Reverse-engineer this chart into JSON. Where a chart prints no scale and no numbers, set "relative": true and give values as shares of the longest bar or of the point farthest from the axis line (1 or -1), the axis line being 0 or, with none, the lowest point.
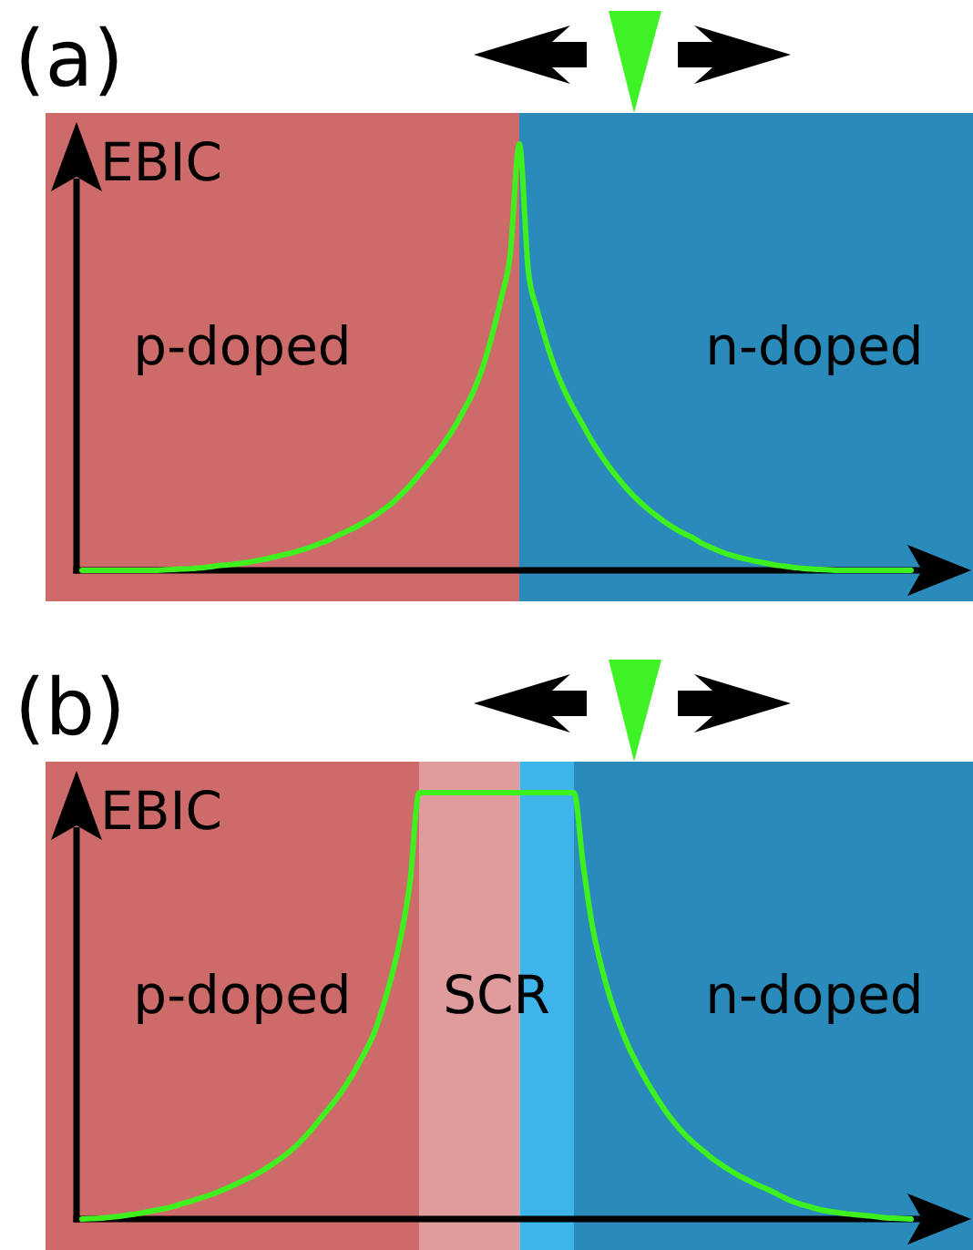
{
  "chart_data": [
    {
      "type": "line",
      "title": "(a)",
      "ylabel": "EBIC",
      "relative": true,
      "annotations": [
        "p-doped",
        "n-doped"
      ],
      "categories": [
        null,
        null,
        null,
        null,
        null,
        null,
        null,
        null,
        null,
        null,
        null,
        null,
        null,
        null,
        null,
        null,
        null,
        null,
        null,
        null,
        null,
        null,
        null,
        null,
        null,
        null,
        null,
        null,
        null,
        null,
        null,
        null,
        null,
        null,
        null,
        null,
        null,
        null,
        null,
        null,
        null,
        null,
        null,
        null,
        null,
        null,
        null,
        null,
        null,
        null,
        null,
        null,
        null,
        null,
        null,
        null,
        null,
        null,
        null,
        null,
        null,
        null,
        null,
        null,
        null,
        null,
        null,
        null,
        null,
        null,
        null,
        null,
        null,
        null,
        null,
        null,
        null,
        null,
        null,
        null,
        null,
        null,
        null,
        null,
        null,
        null,
        null,
        null,
        null,
        null,
        null,
        null
      ],
      "series": [
        {
          "color": "#3ff01f",
          "values": [
            0,
            0,
            0,
            0,
            0,
            0,
            0,
            0,
            0,
            0.001,
            0.002,
            0.003,
            0.004,
            0.006,
            0.008,
            0.011,
            0.013,
            0.015,
            0.018,
            0.022,
            0.026,
            0.031,
            0.036,
            0.041,
            0.047,
            0.054,
            0.062,
            0.07,
            0.081,
            0.091,
            0.101,
            0.113,
            0.126,
            0.141,
            0.157,
            0.177,
            0.199,
            0.224,
            0.25,
            0.277,
            0.307,
            0.34,
            0.379,
            0.421,
            0.477,
            0.55,
            0.637,
            0.74,
            1,
            0.7,
            0.608,
            0.533,
            0.47,
            0.42,
            0.378,
            0.34,
            0.302,
            0.269,
            0.239,
            0.212,
            0.187,
            0.165,
            0.146,
            0.129,
            0.113,
            0.099,
            0.087,
            0.077,
            0.064,
            0.054,
            0.045,
            0.037,
            0.031,
            0.026,
            0.021,
            0.017,
            0.013,
            0.01,
            0.007,
            0.005,
            0.003,
            0.002,
            0.001,
            0,
            0,
            0,
            0,
            0,
            0,
            0,
            0,
            0
          ]
        }
      ]
    },
    {
      "type": "line",
      "title": "(b)",
      "ylabel": "EBIC",
      "relative": true,
      "annotations": [
        "p-doped",
        "SCR",
        "n-doped"
      ],
      "categories": [
        null,
        null,
        null,
        null,
        null,
        null,
        null,
        null,
        null,
        null,
        null,
        null,
        null,
        null,
        null,
        null,
        null,
        null,
        null,
        null,
        null,
        null,
        null,
        null,
        null,
        null,
        null,
        null,
        null,
        null,
        null,
        null,
        null,
        null,
        null,
        null,
        null,
        null,
        null,
        null,
        null,
        null,
        null,
        null,
        null,
        null,
        null,
        null,
        null,
        null,
        null,
        null,
        null,
        null,
        null,
        null,
        null,
        null,
        null,
        null,
        null,
        null,
        null,
        null,
        null,
        null,
        null,
        null,
        null,
        null,
        null,
        null,
        null,
        null,
        null,
        null,
        null,
        null,
        null,
        null,
        null,
        null,
        null,
        null,
        null,
        null,
        null,
        null,
        null,
        null,
        null,
        null
      ],
      "series": [
        {
          "color": "#3ff01f",
          "values": [
            0,
            0.001,
            0.002,
            0.004,
            0.006,
            0.009,
            0.012,
            0.016,
            0.02,
            0.024,
            0.029,
            0.036,
            0.042,
            0.049,
            0.056,
            0.064,
            0.073,
            0.083,
            0.093,
            0.104,
            0.116,
            0.13,
            0.145,
            0.162,
            0.182,
            0.205,
            0.231,
            0.257,
            0.284,
            0.315,
            0.35,
            0.389,
            0.433,
            0.495,
            0.571,
            0.662,
            0.789,
            1,
            1,
            1,
            1,
            1,
            1,
            1,
            1,
            1,
            1,
            1,
            1,
            1,
            1,
            1,
            1,
            1,
            1,
            0.833,
            0.689,
            0.593,
            0.517,
            0.456,
            0.404,
            0.361,
            0.322,
            0.287,
            0.255,
            0.227,
            0.202,
            0.181,
            0.163,
            0.145,
            0.13,
            0.116,
            0.103,
            0.092,
            0.081,
            0.072,
            0.062,
            0.051,
            0.041,
            0.034,
            0.028,
            0.022,
            0.018,
            0.015,
            0.012,
            0.01,
            0.008,
            0.006,
            0.003,
            0.002,
            0.001,
            0
          ]
        }
      ]
    }
  ]
}
